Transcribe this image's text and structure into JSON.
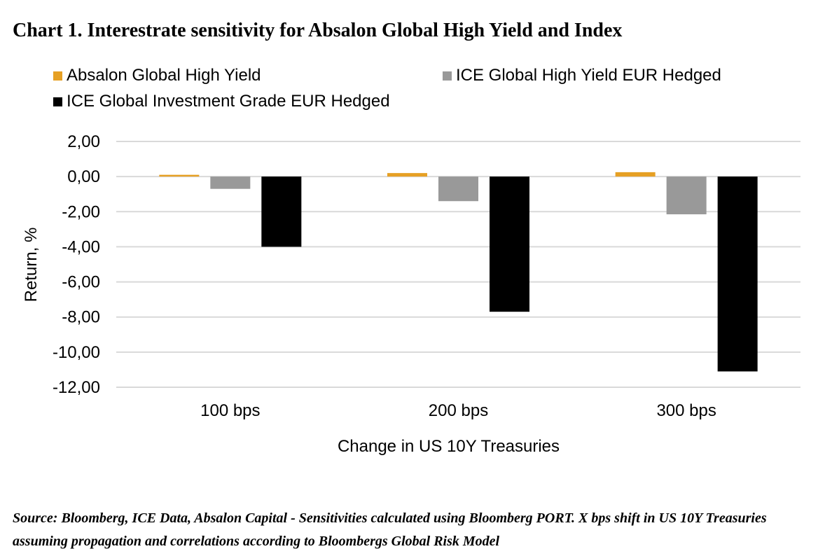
{
  "title": "Chart 1. Interestrate sensitivity for Absalon Global High Yield and Index",
  "source_note": "Source: Bloomberg, ICE Data, Absalon Capital - Sensitivities calculated using Bloomberg PORT. X bps shift in US 10Y Treasuries assuming propagation and correlations according to Bloombergs Global Risk Model",
  "legend": {
    "item0": "Absalon Global High Yield",
    "item1": "ICE Global High Yield EUR Hedged",
    "item2": "ICE Global Investment Grade EUR Hedged",
    "placement": "top"
  },
  "colors": {
    "series0": "#E6A024",
    "series1": "#999999",
    "series2": "#000000",
    "grid": "#D9D9D9"
  },
  "chart_data": {
    "type": "bar",
    "categories": [
      "100 bps",
      "200 bps",
      "300 bps"
    ],
    "series": [
      {
        "name": "Absalon Global High Yield",
        "values": [
          0.1,
          0.2,
          0.25
        ]
      },
      {
        "name": "ICE Global High Yield EUR Hedged",
        "values": [
          -0.7,
          -1.4,
          -2.15
        ]
      },
      {
        "name": "ICE Global Investment Grade EUR Hedged",
        "values": [
          -4.0,
          -7.7,
          -11.1
        ]
      }
    ],
    "xlabel": "Change in US 10Y Treasuries",
    "ylabel": "Return, %",
    "ylim": [
      -12,
      2
    ],
    "yticks": [
      2,
      0,
      -2,
      -4,
      -6,
      -8,
      -10,
      -12
    ],
    "ytick_labels": [
      "2,00",
      "0,00",
      "-2,00",
      "-4,00",
      "-6,00",
      "-8,00",
      "-10,00",
      "-12,00"
    ],
    "grid": true
  }
}
